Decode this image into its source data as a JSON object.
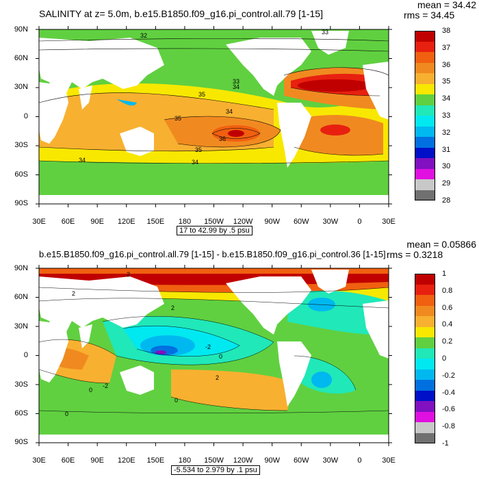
{
  "panels": [
    {
      "title": "SALINITY at z=   5.0m, b.e15.B1850.f09_g16.pi_control.all.79 [1-15]",
      "mean": "mean = 34.42",
      "rms": "rms = 34.45",
      "range_label": "17 to 42.99 by .5 psu",
      "lat_labels": [
        "90N",
        "60N",
        "30N",
        "0",
        "30S",
        "60S",
        "90S"
      ],
      "lon_labels": [
        "30E",
        "60E",
        "90E",
        "120E",
        "150E",
        "180",
        "150W",
        "120W",
        "90W",
        "60W",
        "30W",
        "0",
        "30E"
      ],
      "colorbar": {
        "labels": [
          "38",
          "37",
          "36",
          "35",
          "34",
          "33",
          "32",
          "31",
          "30",
          "29",
          "28"
        ],
        "colors": [
          "#c00000",
          "#e82010",
          "#f06010",
          "#f08a20",
          "#f8b030",
          "#f8e800",
          "#60d040",
          "#20e8b8",
          "#00e8f0",
          "#00b8f0",
          "#0070e0",
          "#0010c8",
          "#8010c0",
          "#e010e0",
          "#c8c8c8",
          "#707070"
        ]
      },
      "contour_labels": [
        "32",
        "33",
        "33",
        "34",
        "35",
        "34",
        "35",
        "36",
        "35",
        "34",
        "34"
      ]
    },
    {
      "title": "b.e15.B1850.f09_g16.pi_control.all.79 [1-15] - b.e15.B1850.f09_g16.pi_control.36 [1-15]",
      "mean": "mean = 0.05866",
      "rms": "rms = 0.3218",
      "range_label": "-5.534 to 2.979 by .1 psu",
      "lat_labels": [
        "90N",
        "60N",
        "30N",
        "0",
        "30S",
        "60S",
        "90S"
      ],
      "lon_labels": [
        "30E",
        "60E",
        "90E",
        "120E",
        "150E",
        "180",
        "150W",
        "120W",
        "90W",
        "60W",
        "30W",
        "0",
        "30E"
      ],
      "colorbar": {
        "labels": [
          "1",
          "0.8",
          "0.6",
          "0.4",
          "0.2",
          "0",
          "-0.2",
          "-0.4",
          "-0.6",
          "-0.8",
          "-1"
        ],
        "colors": [
          "#c00000",
          "#e82010",
          "#f06010",
          "#f08a20",
          "#f8b030",
          "#f8e800",
          "#60d040",
          "#20e8b8",
          "#00e8f0",
          "#00b8f0",
          "#0070e0",
          "#0010c8",
          "#8010c0",
          "#e010e0",
          "#c8c8c8",
          "#707070"
        ]
      },
      "contour_labels": [
        "2",
        "2",
        "-2",
        "2",
        "0",
        "-2",
        "2",
        "0",
        "0",
        "0"
      ]
    }
  ]
}
